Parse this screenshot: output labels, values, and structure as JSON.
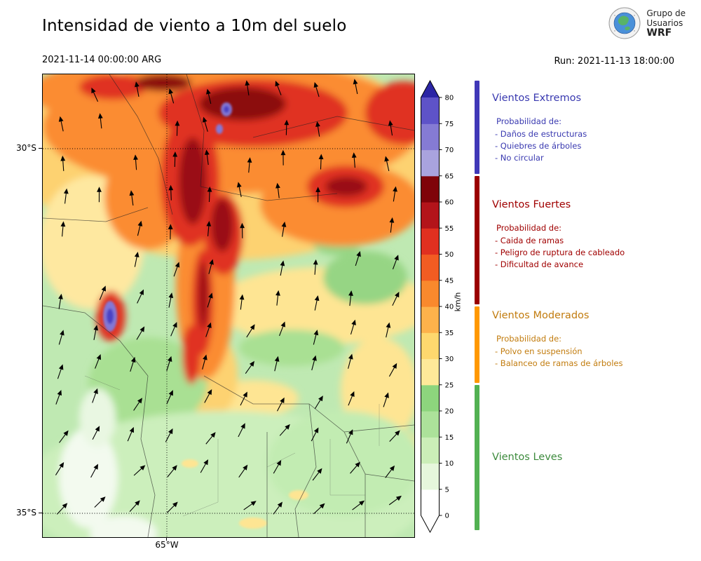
{
  "header": {
    "title": "Intensidad de viento a 10m del suelo",
    "valid_time": "2021-11-14 00:00:00 ARG",
    "run_label": "Run: 2021-11-13 18:00:00",
    "logo": {
      "line1": "Grupo de",
      "line2": "Usuarios",
      "line3": "WRF"
    }
  },
  "map": {
    "lat_labels": [
      {
        "text": "30°S"
      },
      {
        "text": "35°S"
      }
    ],
    "lon_label": "65°W"
  },
  "colorbar": {
    "unit": "km/h",
    "vmax": 80,
    "ticks": [
      0,
      5,
      10,
      15,
      20,
      25,
      30,
      35,
      40,
      45,
      50,
      55,
      60,
      65,
      70,
      75,
      80
    ],
    "segment_colors": [
      "#ffffff",
      "#e6f7dc",
      "#cbeeb8",
      "#ace29a",
      "#8dd57d",
      "#fee999",
      "#fed86e",
      "#fdb24b",
      "#f9892d",
      "#f25c22",
      "#e03020",
      "#b3141a",
      "#7f0309",
      "#a9a3de",
      "#857bd4",
      "#5e53c8"
    ],
    "top_arrow_color": "#2b25a5",
    "bottom_arrow_color": "#ffffff"
  },
  "categories": [
    {
      "name": "Vientos Extremos",
      "range": [
        65,
        82
      ],
      "color": "#4038b8",
      "text_color": "#3939b0",
      "prob_title": "Probabilidad de:",
      "items": [
        "- Daños de estructuras",
        "- Quiebres de árboles",
        "- No circular"
      ]
    },
    {
      "name": "Vientos Fuertes",
      "range": [
        40,
        65
      ],
      "color": "#9a0000",
      "text_color": "#a00000",
      "prob_title": "Probabilidad de:",
      "items": [
        "- Caida de ramas",
        "- Peligro de ruptura de cableado",
        "- Dificultad de avance"
      ]
    },
    {
      "name": "Vientos Moderados",
      "range": [
        25,
        40
      ],
      "color": "#ff9800",
      "text_color": "#c27c0e",
      "prob_title": "Probabilidad de:",
      "items": [
        "- Polvo en suspensión",
        "- Balanceo de ramas de árboles"
      ]
    },
    {
      "name": "Vientos Leves",
      "range": [
        0,
        25
      ],
      "color": "#52b152",
      "text_color": "#3d8b3d",
      "items": []
    }
  ],
  "chart_data": {
    "type": "heatmap",
    "title": "Intensidad de viento a 10m del suelo",
    "variable": "wind speed at 10 m above ground",
    "units": "km/h",
    "valid_time": "2021-11-14 00:00:00 ARG",
    "model_run": "2021-11-13 18:00:00",
    "levels": [
      0,
      5,
      10,
      15,
      20,
      25,
      30,
      35,
      40,
      45,
      50,
      55,
      60,
      65,
      70,
      75,
      80
    ],
    "category_thresholds": {
      "Vientos Leves": [
        0,
        25
      ],
      "Vientos Moderados": [
        25,
        40
      ],
      "Vientos Fuertes": [
        40,
        65
      ],
      "Vientos Extremos": [
        65,
        80
      ]
    },
    "lat_ticks": [
      "30°S",
      "35°S"
    ],
    "lon_ticks": [
      "65°W"
    ],
    "legend_position": "right"
  }
}
